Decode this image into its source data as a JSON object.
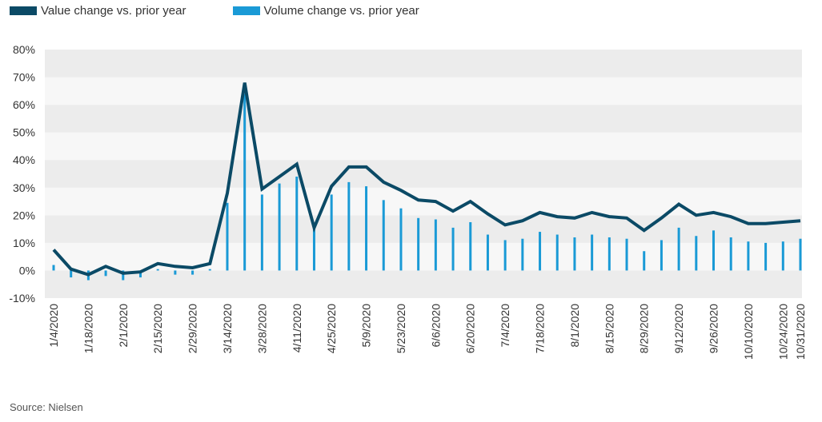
{
  "chart_data": {
    "type": "bar+line",
    "title": "",
    "xlabel": "",
    "ylabel": "",
    "ylim": [
      -10,
      80
    ],
    "y_ticks": [
      "-10%",
      "0%",
      "10%",
      "20%",
      "30%",
      "40%",
      "50%",
      "60%",
      "70%",
      "80%"
    ],
    "y_tick_values": [
      -10,
      0,
      10,
      20,
      30,
      40,
      50,
      60,
      70,
      80
    ],
    "grid": "alternating horizontal bands",
    "legend_position": "top-left",
    "x": [
      "1/4/2020",
      "1/11/2020",
      "1/18/2020",
      "1/25/2020",
      "2/1/2020",
      "2/8/2020",
      "2/15/2020",
      "2/22/2020",
      "2/29/2020",
      "3/7/2020",
      "3/14/2020",
      "3/21/2020",
      "3/28/2020",
      "4/4/2020",
      "4/11/2020",
      "4/18/2020",
      "4/25/2020",
      "5/2/2020",
      "5/9/2020",
      "5/16/2020",
      "5/23/2020",
      "5/30/2020",
      "6/6/2020",
      "6/13/2020",
      "6/20/2020",
      "6/27/2020",
      "7/4/2020",
      "7/11/2020",
      "7/18/2020",
      "7/25/2020",
      "8/1/2020",
      "8/8/2020",
      "8/15/2020",
      "8/22/2020",
      "8/29/2020",
      "9/5/2020",
      "9/12/2020",
      "9/19/2020",
      "9/26/2020",
      "10/3/2020",
      "10/10/2020",
      "10/17/2020",
      "10/24/2020",
      "10/31/2020"
    ],
    "x_tick_labels": [
      "1/4/2020",
      "1/18/2020",
      "2/1/2020",
      "2/15/2020",
      "2/29/2020",
      "3/14/2020",
      "3/28/2020",
      "4/11/2020",
      "4/25/2020",
      "5/9/2020",
      "5/23/2020",
      "6/6/2020",
      "6/20/2020",
      "7/4/2020",
      "7/18/2020",
      "8/1/2020",
      "8/15/2020",
      "8/29/2020",
      "9/12/2020",
      "9/26/2020",
      "10/10/2020",
      "10/24/2020",
      "10/31/2020"
    ],
    "series": [
      {
        "name": "Value change vs. prior year",
        "kind": "line",
        "color": "#0b4a66",
        "values": [
          7.5,
          0.5,
          -1.5,
          1.5,
          -1,
          -0.5,
          2.5,
          1.5,
          1,
          2.5,
          28,
          68,
          29.5,
          34,
          38.5,
          15.5,
          30.5,
          37.5,
          37.5,
          32,
          29,
          25.5,
          25,
          21.5,
          25,
          20.5,
          16.5,
          18,
          21,
          19.5,
          19,
          21,
          19.5,
          19,
          14.5,
          19,
          24,
          20,
          21,
          19.5,
          17,
          17,
          17.5,
          18
        ]
      },
      {
        "name": "Volume change vs. prior year",
        "kind": "bar",
        "color": "#1a9ad6",
        "values": [
          2,
          -2.5,
          -3.5,
          -2,
          -3.5,
          -2.5,
          0.5,
          -1.5,
          -1.5,
          0.5,
          24.5,
          64,
          27.5,
          31.5,
          34,
          16,
          27.5,
          32,
          30.5,
          25.5,
          22.5,
          19,
          18.5,
          15.5,
          17.5,
          13,
          11,
          11.5,
          14,
          13,
          12,
          13,
          12,
          11.5,
          7,
          11,
          15.5,
          12.5,
          14.5,
          12,
          10.5,
          10,
          10.5,
          11.5
        ]
      }
    ]
  },
  "legend": {
    "items": [
      {
        "label": "Value change vs. prior year",
        "color": "#0b4a66"
      },
      {
        "label": "Volume change vs. prior year",
        "color": "#1a9ad6"
      }
    ]
  },
  "footer": {
    "source": "Source: Nielsen"
  }
}
